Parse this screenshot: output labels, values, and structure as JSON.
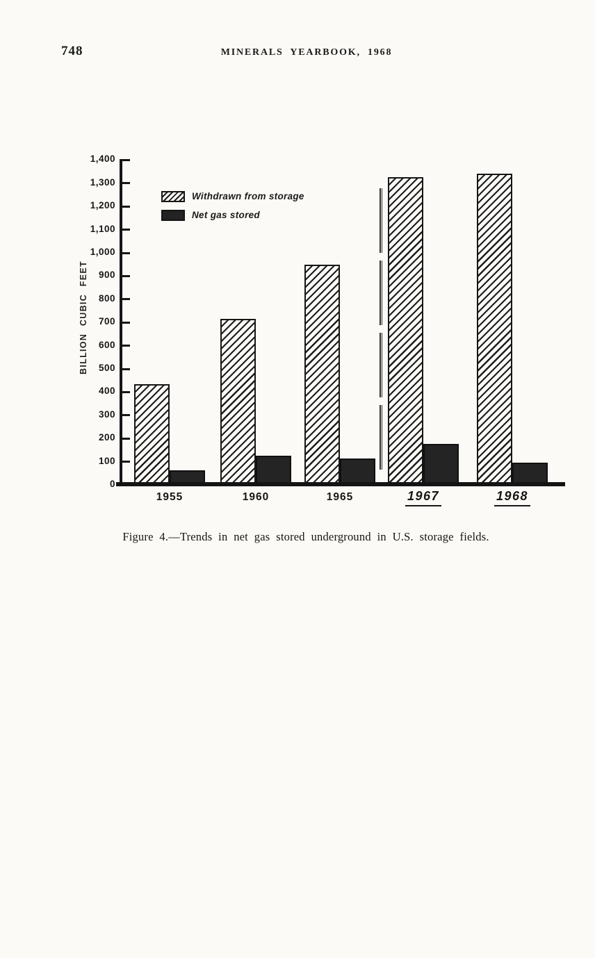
{
  "page": {
    "page_number": "748",
    "header_title": "MINERALS YEARBOOK, 1968",
    "caption": "Figure 4.—Trends in net gas stored underground in U.S. storage fields."
  },
  "chart_data": {
    "type": "bar",
    "title": "",
    "xlabel": "",
    "ylabel": "BILLION CUBIC FEET",
    "ylim": [
      0,
      1400
    ],
    "ytick_interval": 100,
    "ytick_labels": [
      "0",
      "100",
      "200",
      "300",
      "400",
      "500",
      "600",
      "700",
      "800",
      "900",
      "1,000",
      "1,100",
      "1,200",
      "1,300",
      "1,400"
    ],
    "categories": [
      "1955",
      "1960",
      "1965",
      "1967",
      "1968"
    ],
    "emphasized_categories": [
      "1967",
      "1968"
    ],
    "series": [
      {
        "name": "Withdrawn from storage",
        "style": "hatched",
        "values": [
          435,
          715,
          950,
          1325,
          1340
        ]
      },
      {
        "name": "Net gas stored",
        "style": "solid-dark",
        "values": [
          62,
          126,
          114,
          178,
          95
        ]
      }
    ],
    "legend_position": "upper-left-inside",
    "grid": false,
    "axis_break": "dashed double line between 1965 and 1967 groups",
    "colors": {
      "ink": "#1b1b1b",
      "paper": "#fbfaf6"
    }
  }
}
